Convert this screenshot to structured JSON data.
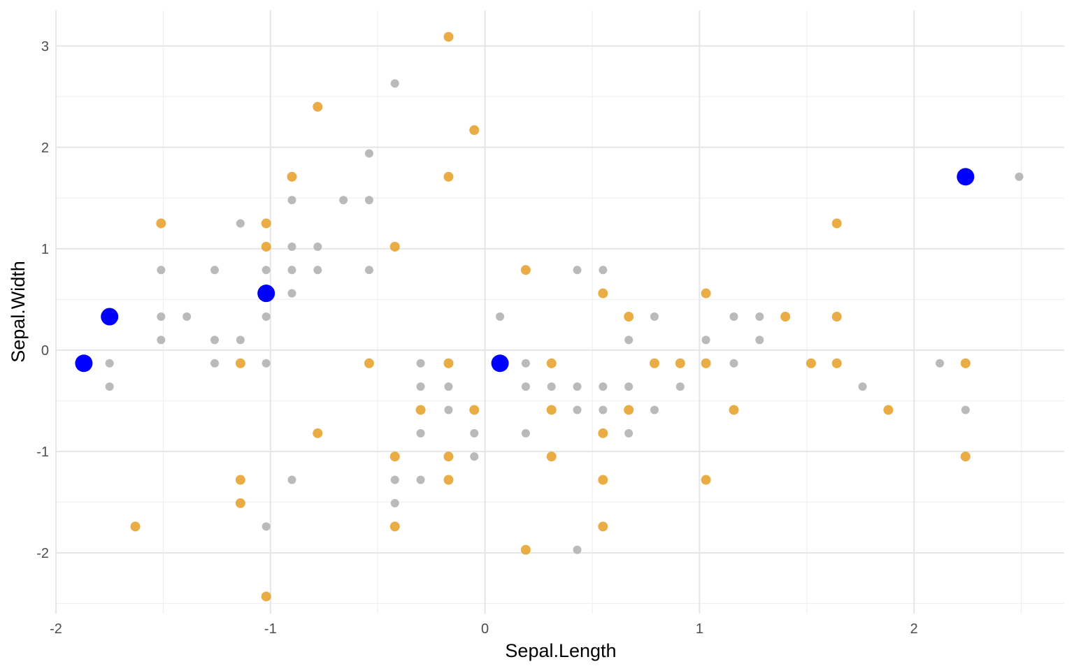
{
  "chart_data": {
    "type": "scatter",
    "title": "",
    "xlabel": "Sepal.Length",
    "ylabel": "Sepal.Width",
    "xlim": [
      -2.0,
      2.7
    ],
    "ylim": [
      -2.6,
      3.35
    ],
    "x_ticks": [
      -2,
      -1,
      0,
      1,
      2
    ],
    "y_ticks": [
      -2,
      -1,
      0,
      1,
      2,
      3
    ],
    "x_tick_labels": [
      "-2",
      "-1",
      "0",
      "1",
      "2"
    ],
    "y_tick_labels": [
      "-2",
      "-1",
      "0",
      "1",
      "2",
      "3"
    ],
    "grid": true,
    "legend": "none",
    "series": [
      {
        "color": "#b3b3b3",
        "marker_size": "small",
        "points": [
          [
            -1.75,
            -0.13
          ],
          [
            -1.75,
            -0.36
          ],
          [
            -1.51,
            0.79
          ],
          [
            -1.51,
            0.33
          ],
          [
            -1.51,
            0.1
          ],
          [
            -1.39,
            0.33
          ],
          [
            -1.26,
            0.79
          ],
          [
            -1.26,
            0.1
          ],
          [
            -1.26,
            -0.13
          ],
          [
            -1.14,
            1.25
          ],
          [
            -1.14,
            0.1
          ],
          [
            -1.02,
            0.79
          ],
          [
            -1.02,
            0.33
          ],
          [
            -1.02,
            -0.13
          ],
          [
            -1.02,
            -1.74
          ],
          [
            -0.9,
            1.48
          ],
          [
            -0.9,
            1.02
          ],
          [
            -0.9,
            0.79
          ],
          [
            -0.9,
            0.56
          ],
          [
            -0.9,
            -1.28
          ],
          [
            -0.78,
            1.02
          ],
          [
            -0.78,
            0.79
          ],
          [
            -0.66,
            1.48
          ],
          [
            -0.54,
            1.94
          ],
          [
            -0.54,
            1.48
          ],
          [
            -0.54,
            0.79
          ],
          [
            -0.42,
            2.63
          ],
          [
            -0.42,
            -1.28
          ],
          [
            -0.42,
            -1.51
          ],
          [
            -0.3,
            -0.13
          ],
          [
            -0.3,
            -0.36
          ],
          [
            -0.3,
            -0.82
          ],
          [
            -0.3,
            -1.28
          ],
          [
            -0.17,
            -0.36
          ],
          [
            -0.17,
            -0.59
          ],
          [
            -0.05,
            -0.82
          ],
          [
            -0.05,
            -1.05
          ],
          [
            0.07,
            0.33
          ],
          [
            0.19,
            -0.13
          ],
          [
            0.19,
            -0.36
          ],
          [
            0.19,
            -0.82
          ],
          [
            0.31,
            -0.36
          ],
          [
            0.43,
            0.79
          ],
          [
            0.43,
            -0.36
          ],
          [
            0.43,
            -0.59
          ],
          [
            0.43,
            -1.97
          ],
          [
            0.55,
            0.79
          ],
          [
            0.55,
            -0.36
          ],
          [
            0.55,
            -0.59
          ],
          [
            0.67,
            0.1
          ],
          [
            0.67,
            -0.36
          ],
          [
            0.67,
            -0.82
          ],
          [
            0.79,
            0.33
          ],
          [
            0.79,
            -0.59
          ],
          [
            0.91,
            -0.36
          ],
          [
            1.03,
            0.1
          ],
          [
            1.16,
            0.33
          ],
          [
            1.16,
            -0.13
          ],
          [
            1.28,
            0.33
          ],
          [
            1.28,
            0.1
          ],
          [
            1.76,
            -0.36
          ],
          [
            2.12,
            -0.13
          ],
          [
            2.24,
            -0.59
          ],
          [
            2.49,
            1.71
          ]
        ]
      },
      {
        "color": "#e69f26",
        "marker_size": "medium",
        "points": [
          [
            -0.17,
            3.09
          ],
          [
            -0.78,
            2.4
          ],
          [
            -0.05,
            2.17
          ],
          [
            -0.9,
            1.71
          ],
          [
            -0.17,
            1.71
          ],
          [
            -1.51,
            1.25
          ],
          [
            -1.02,
            1.25
          ],
          [
            1.64,
            1.25
          ],
          [
            -1.02,
            1.02
          ],
          [
            -0.42,
            1.02
          ],
          [
            0.19,
            0.79
          ],
          [
            0.55,
            0.56
          ],
          [
            1.03,
            0.56
          ],
          [
            0.67,
            0.33
          ],
          [
            1.4,
            0.33
          ],
          [
            1.64,
            0.33
          ],
          [
            -1.14,
            -0.13
          ],
          [
            -0.54,
            -0.13
          ],
          [
            -0.17,
            -0.13
          ],
          [
            0.31,
            -0.13
          ],
          [
            0.79,
            -0.13
          ],
          [
            0.91,
            -0.13
          ],
          [
            1.03,
            -0.13
          ],
          [
            1.52,
            -0.13
          ],
          [
            1.64,
            -0.13
          ],
          [
            2.24,
            -0.13
          ],
          [
            -0.3,
            -0.59
          ],
          [
            -0.05,
            -0.59
          ],
          [
            0.31,
            -0.59
          ],
          [
            0.67,
            -0.59
          ],
          [
            1.16,
            -0.59
          ],
          [
            1.88,
            -0.59
          ],
          [
            -0.78,
            -0.82
          ],
          [
            0.55,
            -0.82
          ],
          [
            -0.42,
            -1.05
          ],
          [
            -0.17,
            -1.05
          ],
          [
            0.31,
            -1.05
          ],
          [
            2.24,
            -1.05
          ],
          [
            -1.14,
            -1.28
          ],
          [
            -0.17,
            -1.28
          ],
          [
            0.55,
            -1.28
          ],
          [
            1.03,
            -1.28
          ],
          [
            -1.14,
            -1.51
          ],
          [
            -1.63,
            -1.74
          ],
          [
            -0.42,
            -1.74
          ],
          [
            0.55,
            -1.74
          ],
          [
            0.19,
            -1.97
          ],
          [
            -1.02,
            -2.43
          ]
        ]
      },
      {
        "color": "#0000ff",
        "marker_size": "large",
        "points": [
          [
            -1.87,
            -0.13
          ],
          [
            -1.75,
            0.33
          ],
          [
            -1.02,
            0.56
          ],
          [
            0.07,
            -0.13
          ],
          [
            2.24,
            1.71
          ]
        ]
      }
    ]
  }
}
